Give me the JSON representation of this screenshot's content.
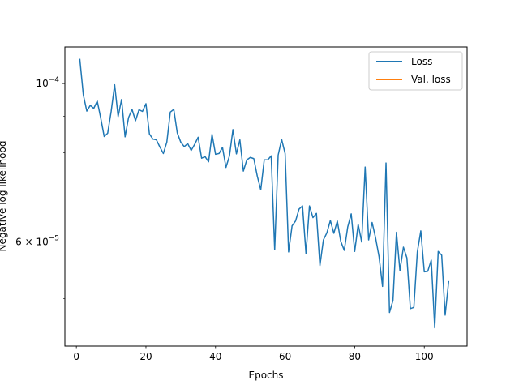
{
  "chart_data": {
    "type": "line",
    "title": "",
    "xlabel": "Epochs",
    "ylabel": "Negative log likelihood",
    "yscale": "log",
    "xlim": [
      -3.3,
      112.3
    ],
    "ylim": [
      4.29e-05,
      0.0001125
    ],
    "xticks": [
      0,
      20,
      40,
      60,
      80,
      100
    ],
    "xtick_labels": [
      "0",
      "20",
      "40",
      "60",
      "80",
      "100"
    ],
    "yticks": [
      0.0001,
      6e-05
    ],
    "ytick_labels": [
      {
        "base": "10",
        "exp": "−4"
      },
      {
        "mantissa": "6",
        "times": "×",
        "base": "10",
        "exp": "−5"
      }
    ],
    "legend": {
      "position": "upper right",
      "entries": [
        "Loss",
        "Val. loss"
      ]
    },
    "colors": {
      "Loss": "#1f77b4",
      "Val. loss": "#ff7f0e"
    },
    "series": [
      {
        "name": "Loss",
        "x": [
          1,
          2,
          3,
          4,
          5,
          6,
          7,
          8,
          9,
          10,
          11,
          12,
          13,
          14,
          15,
          16,
          17,
          18,
          19,
          20,
          21,
          22,
          23,
          24,
          25,
          26,
          27,
          28,
          29,
          30,
          31,
          32,
          33,
          34,
          35,
          36,
          37,
          38,
          39,
          40,
          41,
          42,
          43,
          44,
          45,
          46,
          47,
          48,
          49,
          50,
          51,
          52,
          53,
          54,
          55,
          56,
          57,
          58,
          59,
          60,
          61,
          62,
          63,
          64,
          65,
          66,
          67,
          68,
          69,
          70,
          71,
          72,
          73,
          74,
          75,
          76,
          77,
          78,
          79,
          80,
          81,
          82,
          83,
          84,
          85,
          86,
          87,
          88,
          89,
          90,
          91,
          92,
          93,
          94,
          95,
          96,
          97,
          98,
          99,
          100,
          101,
          102,
          103,
          104,
          105,
          106,
          107
        ],
        "values": [
          0.0001081,
          9.64e-05,
          9.15e-05,
          9.32e-05,
          9.23e-05,
          9.45e-05,
          8.95e-05,
          8.43e-05,
          8.52e-05,
          9.14e-05,
          9.96e-05,
          8.99e-05,
          9.5e-05,
          8.42e-05,
          8.96e-05,
          9.2e-05,
          8.87e-05,
          9.19e-05,
          9.14e-05,
          9.37e-05,
          8.5e-05,
          8.36e-05,
          8.34e-05,
          8.15e-05,
          7.98e-05,
          8.28e-05,
          9.12e-05,
          9.2e-05,
          8.53e-05,
          8.28e-05,
          8.16e-05,
          8.24e-05,
          8.06e-05,
          8.22e-05,
          8.41e-05,
          7.86e-05,
          7.9e-05,
          7.77e-05,
          8.49e-05,
          7.96e-05,
          7.98e-05,
          8.14e-05,
          7.63e-05,
          7.92e-05,
          8.62e-05,
          7.97e-05,
          8.34e-05,
          7.54e-05,
          7.82e-05,
          7.88e-05,
          7.85e-05,
          7.42e-05,
          7.1e-05,
          7.82e-05,
          7.82e-05,
          7.92e-05,
          5.85e-05,
          7.94e-05,
          8.35e-05,
          7.98e-05,
          5.81e-05,
          6.32e-05,
          6.42e-05,
          6.67e-05,
          6.74e-05,
          5.78e-05,
          6.74e-05,
          6.49e-05,
          6.58e-05,
          5.56e-05,
          6.04e-05,
          6.18e-05,
          6.43e-05,
          6.17e-05,
          6.42e-05,
          6.01e-05,
          5.84e-05,
          6.3e-05,
          6.57e-05,
          5.82e-05,
          6.35e-05,
          6e-05,
          7.64e-05,
          6.04e-05,
          6.39e-05,
          6.08e-05,
          5.72e-05,
          5.2e-05,
          7.74e-05,
          4.78e-05,
          4.97e-05,
          6.19e-05,
          5.47e-05,
          5.9e-05,
          5.7e-05,
          4.84e-05,
          4.86e-05,
          5.81e-05,
          6.22e-05,
          5.45e-05,
          5.46e-05,
          5.66e-05,
          4.55e-05,
          5.82e-05,
          5.75e-05,
          4.74e-05,
          5.28e-05
        ]
      },
      {
        "name": "Val. loss",
        "x": [],
        "values": []
      }
    ],
    "grid": false
  }
}
